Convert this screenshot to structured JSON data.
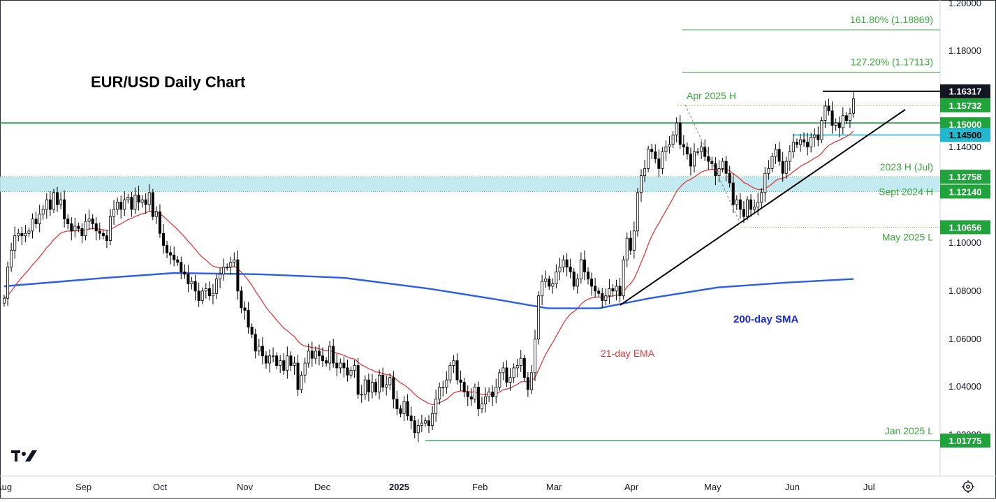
{
  "chart_data": {
    "type": "candlestick",
    "title": "EUR/USD Daily Chart",
    "y_axis": {
      "range": [
        1.0,
        1.2
      ],
      "ticks": [
        "1.20000",
        "1.18000",
        "1.14000",
        "1.10000",
        "1.08000",
        "1.06000",
        "1.04000",
        "1.02000"
      ]
    },
    "x_axis": {
      "labels": [
        "Aug",
        "Sep",
        "Oct",
        "Nov",
        "Dec",
        "2025",
        "Feb",
        "Mar",
        "Apr",
        "May",
        "Jun",
        "Jul"
      ]
    },
    "price_badges": [
      {
        "label": "1.16317",
        "value": 1.16317,
        "style": "dark"
      },
      {
        "label": "1.15732",
        "value": 1.15732,
        "style": "green"
      },
      {
        "label": "1.15000",
        "value": 1.15,
        "style": "green"
      },
      {
        "label": "1.14500",
        "value": 1.145,
        "style": "teal"
      },
      {
        "label": "1.12758",
        "value": 1.12758,
        "style": "green"
      },
      {
        "label": "1.12140",
        "value": 1.1214,
        "style": "green"
      },
      {
        "label": "1.10656",
        "value": 1.10656,
        "style": "green"
      },
      {
        "label": "1.01775",
        "value": 1.01775,
        "style": "green"
      }
    ],
    "levels": [
      {
        "name": "161.80% (1.18869)",
        "value": 1.18869,
        "kind": "fib"
      },
      {
        "name": "127.20% (1.17113)",
        "value": 1.17113,
        "kind": "fib"
      },
      {
        "name": "Apr 2025 H",
        "value": 1.15732,
        "kind": "swing"
      },
      {
        "name": "2023 H (Jul)",
        "value": 1.12758,
        "kind": "zone-top"
      },
      {
        "name": "Sept 2024 H",
        "value": 1.1214,
        "kind": "zone-bottom"
      },
      {
        "name": "May 2025 L",
        "value": 1.10656,
        "kind": "swing"
      },
      {
        "name": "Jan 2025 L",
        "value": 1.01775,
        "kind": "swing"
      }
    ],
    "indicators": [
      {
        "name": "21-day EMA",
        "color": "#e03b3b"
      },
      {
        "name": "200-day SMA",
        "color": "#2a5ee8"
      }
    ],
    "close_series": [
      1.077,
      1.09,
      1.097,
      1.103,
      1.104,
      1.103,
      1.104,
      1.105,
      1.11,
      1.108,
      1.112,
      1.114,
      1.118,
      1.114,
      1.121,
      1.116,
      1.118,
      1.11,
      1.108,
      1.105,
      1.107,
      1.106,
      1.103,
      1.109,
      1.11,
      1.108,
      1.105,
      1.104,
      1.103,
      1.101,
      1.111,
      1.114,
      1.117,
      1.114,
      1.118,
      1.119,
      1.114,
      1.12,
      1.117,
      1.118,
      1.116,
      1.121,
      1.111,
      1.113,
      1.104,
      1.099,
      1.096,
      1.095,
      1.093,
      1.092,
      1.088,
      1.087,
      1.083,
      1.084,
      1.08,
      1.076,
      1.08,
      1.081,
      1.078,
      1.079,
      1.085,
      1.087,
      1.09,
      1.09,
      1.092,
      1.093,
      1.08,
      1.073,
      1.072,
      1.065,
      1.062,
      1.055,
      1.057,
      1.053,
      1.05,
      1.053,
      1.053,
      1.049,
      1.051,
      1.047,
      1.053,
      1.049,
      1.05,
      1.039,
      1.045,
      1.05,
      1.055,
      1.052,
      1.055,
      1.053,
      1.051,
      1.05,
      1.057,
      1.05,
      1.048,
      1.05,
      1.048,
      1.045,
      1.047,
      1.049,
      1.037,
      1.037,
      1.043,
      1.038,
      1.042,
      1.038,
      1.045,
      1.04,
      1.041,
      1.044,
      1.035,
      1.031,
      1.029,
      1.034,
      1.028,
      1.026,
      1.021,
      1.024,
      1.025,
      1.026,
      1.024,
      1.029,
      1.035,
      1.04,
      1.04,
      1.043,
      1.049,
      1.051,
      1.043,
      1.042,
      1.038,
      1.036,
      1.035,
      1.04,
      1.031,
      1.033,
      1.036,
      1.038,
      1.036,
      1.04,
      1.046,
      1.048,
      1.042,
      1.044,
      1.048,
      1.049,
      1.052,
      1.044,
      1.039,
      1.046,
      1.06,
      1.078,
      1.084,
      1.085,
      1.082,
      1.083,
      1.088,
      1.09,
      1.093,
      1.09,
      1.088,
      1.082,
      1.085,
      1.093,
      1.088,
      1.085,
      1.082,
      1.08,
      1.079,
      1.076,
      1.078,
      1.081,
      1.08,
      1.082,
      1.078,
      1.093,
      1.102,
      1.097,
      1.105,
      1.121,
      1.128,
      1.131,
      1.139,
      1.138,
      1.135,
      1.131,
      1.138,
      1.14,
      1.141,
      1.145,
      1.15,
      1.141,
      1.14,
      1.137,
      1.132,
      1.138,
      1.138,
      1.14,
      1.136,
      1.134,
      1.133,
      1.128,
      1.131,
      1.134,
      1.129,
      1.125,
      1.116,
      1.118,
      1.114,
      1.111,
      1.118,
      1.114,
      1.115,
      1.117,
      1.121,
      1.129,
      1.131,
      1.136,
      1.139,
      1.134,
      1.129,
      1.134,
      1.138,
      1.142,
      1.141,
      1.143,
      1.142,
      1.14,
      1.144,
      1.145,
      1.143,
      1.151,
      1.157,
      1.155,
      1.149,
      1.15,
      1.148,
      1.153,
      1.151,
      1.154,
      1.16
    ]
  }
}
